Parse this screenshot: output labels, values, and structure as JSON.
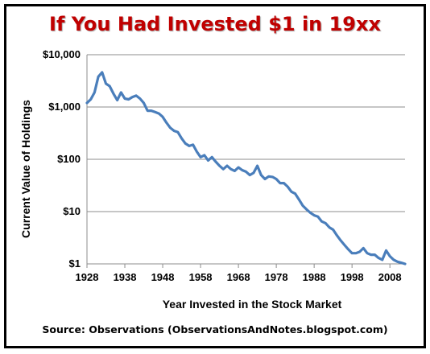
{
  "chart_data": {
    "type": "line",
    "title": "If You Had Invested $1 in 19xx",
    "xlabel": "Year Invested in the Stock Market",
    "ylabel": "Current Value of Holdings",
    "source": "Source: Observations (ObservationsAndNotes.blogspot.com)",
    "yscale": "log",
    "ylim": [
      1,
      10000
    ],
    "xlim": [
      1928,
      2012
    ],
    "y_ticks": [
      {
        "value": 1,
        "label": "$1"
      },
      {
        "value": 10,
        "label": "$10"
      },
      {
        "value": 100,
        "label": "$100"
      },
      {
        "value": 1000,
        "label": "$1,000"
      },
      {
        "value": 10000,
        "label": "$10,000"
      }
    ],
    "x_ticks": [
      1928,
      1938,
      1948,
      1958,
      1968,
      1978,
      1988,
      1998,
      2008
    ],
    "grid": {
      "horizontal": true,
      "vertical": false
    },
    "line_color": "#4a7ebb",
    "series": [
      {
        "x": [
          1928,
          1929,
          1930,
          1931,
          1932,
          1933,
          1934,
          1935,
          1936,
          1937,
          1938,
          1939,
          1940,
          1941,
          1942,
          1943,
          1944,
          1945,
          1946,
          1947,
          1948,
          1949,
          1950,
          1951,
          1952,
          1953,
          1954,
          1955,
          1956,
          1957,
          1958,
          1959,
          1960,
          1961,
          1962,
          1963,
          1964,
          1965,
          1966,
          1967,
          1968,
          1969,
          1970,
          1971,
          1972,
          1973,
          1974,
          1975,
          1976,
          1977,
          1978,
          1979,
          1980,
          1981,
          1982,
          1983,
          1984,
          1985,
          1986,
          1987,
          1988,
          1989,
          1990,
          1991,
          1992,
          1993,
          1994,
          1995,
          1996,
          1997,
          1998,
          1999,
          2000,
          2001,
          2002,
          2003,
          2004,
          2005,
          2006,
          2007,
          2008,
          2009,
          2010,
          2011,
          2012
        ],
        "values": [
          1200,
          1400,
          1900,
          3800,
          4600,
          2800,
          2500,
          1800,
          1350,
          1900,
          1450,
          1400,
          1550,
          1650,
          1450,
          1200,
          850,
          850,
          800,
          750,
          650,
          500,
          400,
          350,
          330,
          250,
          200,
          180,
          190,
          140,
          110,
          120,
          95,
          110,
          90,
          75,
          65,
          75,
          65,
          60,
          70,
          62,
          58,
          50,
          55,
          75,
          50,
          42,
          47,
          46,
          42,
          35,
          35,
          30,
          24,
          22,
          17,
          13,
          11,
          9.5,
          8.5,
          8,
          6.5,
          6,
          5,
          4.5,
          3.5,
          2.8,
          2.3,
          1.9,
          1.6,
          1.6,
          1.7,
          2,
          1.6,
          1.5,
          1.5,
          1.3,
          1.2,
          1.8,
          1.4,
          1.2,
          1.1,
          1.05,
          1
        ]
      }
    ]
  }
}
